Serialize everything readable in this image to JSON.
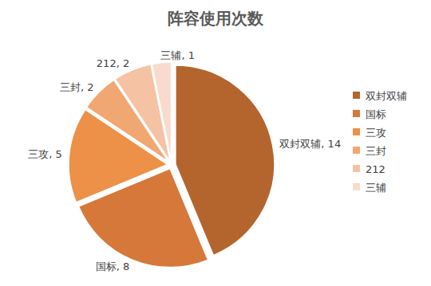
{
  "chart_data": {
    "type": "pie",
    "title": "阵容使用次数",
    "categories": [
      "双封双辅",
      "国标",
      "三攻",
      "三封",
      "212",
      "三辅"
    ],
    "values": [
      14,
      8,
      5,
      2,
      2,
      1
    ],
    "value_labels": [
      "双封双辅, 14",
      "国标, 8",
      "三攻, 5",
      "三封, 2",
      "212, 2",
      "三辅, 1"
    ],
    "colors": [
      "#b4652d",
      "#d6783a",
      "#ed9048",
      "#f1a772",
      "#f5c2a4",
      "#f8dbcd"
    ],
    "data_labels": true,
    "legend": "right"
  }
}
